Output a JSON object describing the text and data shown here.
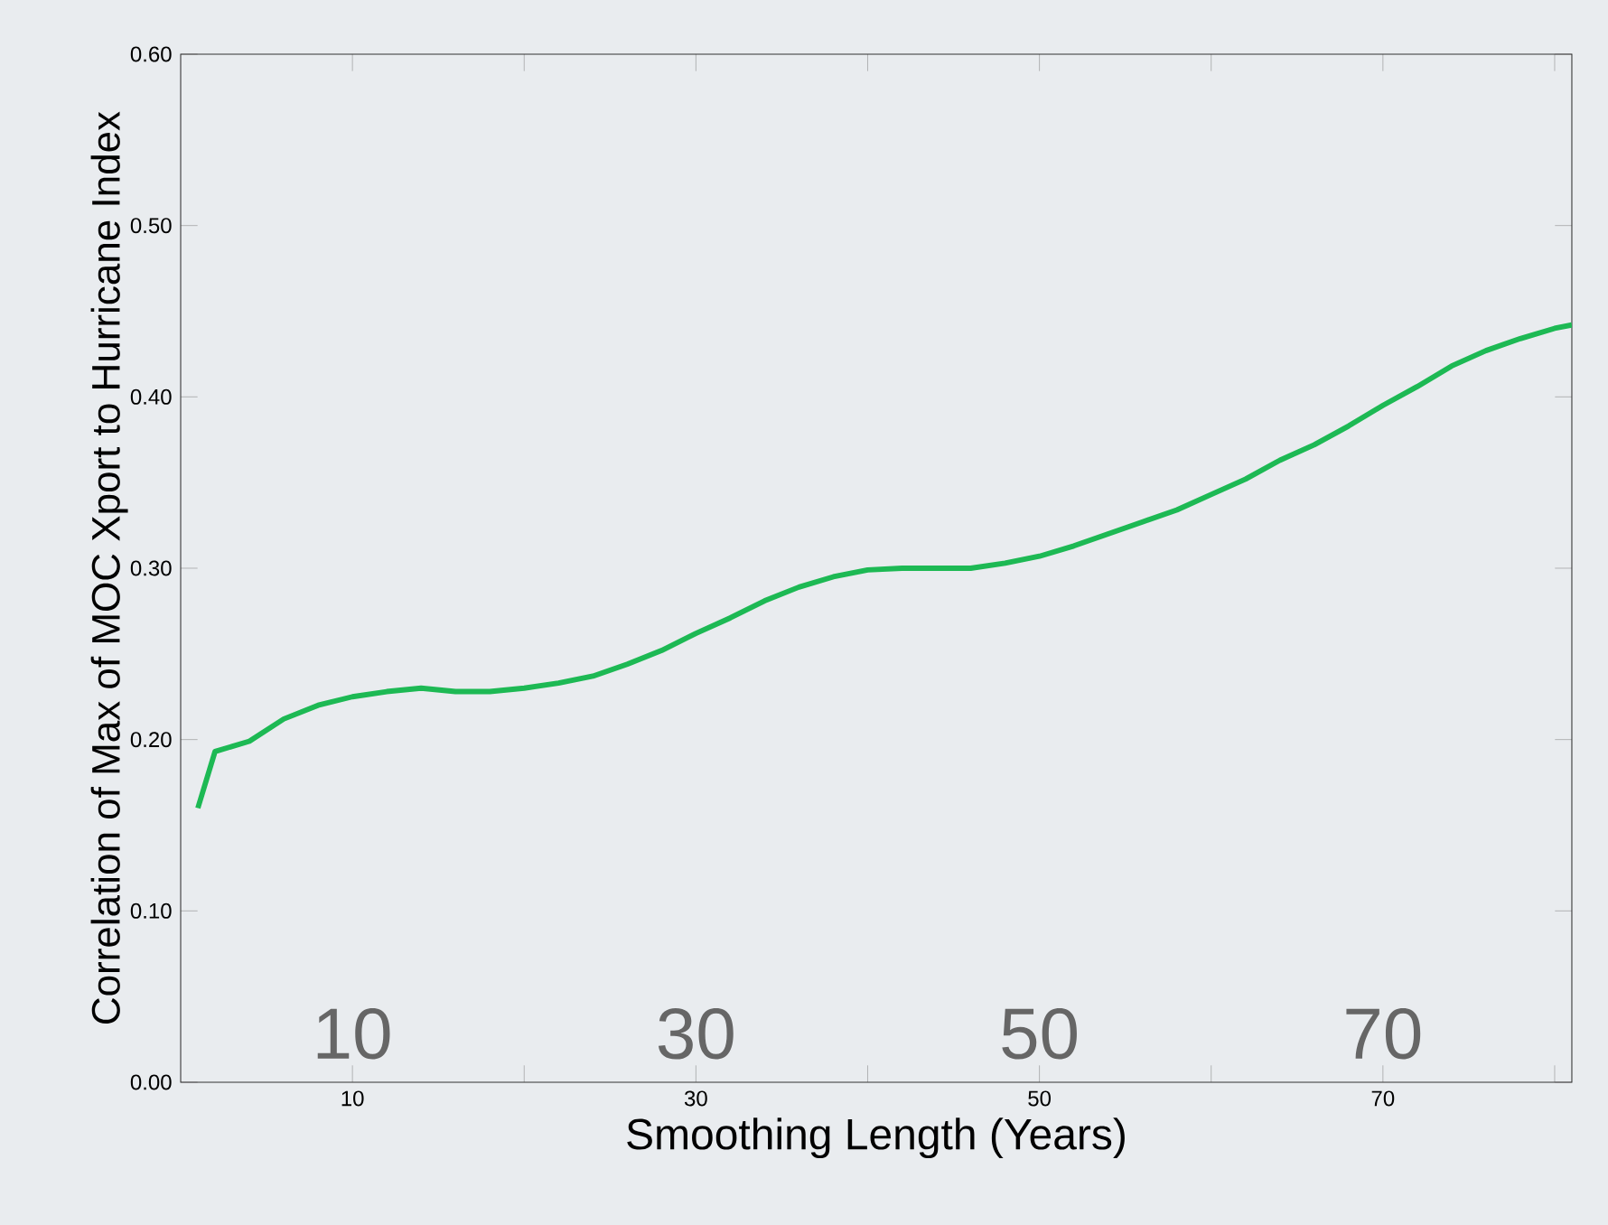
{
  "chart_data": {
    "type": "line",
    "xlabel": "Smoothing Length (Years)",
    "ylabel": "Correlation of Max of MOC Xport to Hurricane Index",
    "annotations": [
      "10",
      "30",
      "50",
      "70"
    ],
    "xlim": [
      0,
      81
    ],
    "ylim": [
      0,
      0.6
    ],
    "xticks": [
      {
        "value": 10,
        "label": "10"
      },
      {
        "value": 20,
        "label": null
      },
      {
        "value": 30,
        "label": "30"
      },
      {
        "value": 40,
        "label": null
      },
      {
        "value": 50,
        "label": "50"
      },
      {
        "value": 60,
        "label": null
      },
      {
        "value": 70,
        "label": "70"
      },
      {
        "value": 80,
        "label": null
      }
    ],
    "yticks": [
      {
        "value": 0,
        "label": "0.00"
      },
      {
        "value": 0.1,
        "label": "0.10"
      },
      {
        "value": 0.2,
        "label": "0.20"
      },
      {
        "value": 0.3,
        "label": "0.30"
      },
      {
        "value": 0.4,
        "label": "0.40"
      },
      {
        "value": 0.5,
        "label": "0.50"
      },
      {
        "value": 0.6,
        "label": "0.60"
      }
    ],
    "grid": false,
    "marker": "none",
    "line_style": "solid",
    "x": [
      1,
      2,
      4,
      6,
      8,
      10,
      12,
      14,
      16,
      18,
      20,
      22,
      24,
      26,
      28,
      30,
      32,
      34,
      36,
      38,
      40,
      42,
      44,
      46,
      48,
      50,
      52,
      54,
      56,
      58,
      60,
      62,
      64,
      66,
      68,
      70,
      72,
      74,
      76,
      78,
      80,
      81
    ],
    "series": [
      {
        "color": "#1db954",
        "values": [
          0.16,
          0.193,
          0.199,
          0.212,
          0.22,
          0.225,
          0.228,
          0.23,
          0.228,
          0.228,
          0.23,
          0.233,
          0.237,
          0.244,
          0.252,
          0.262,
          0.271,
          0.281,
          0.289,
          0.295,
          0.299,
          0.3,
          0.3,
          0.3,
          0.303,
          0.307,
          0.313,
          0.32,
          0.327,
          0.334,
          0.343,
          0.352,
          0.363,
          0.372,
          0.383,
          0.395,
          0.406,
          0.418,
          0.427,
          0.434,
          0.44,
          0.442
        ]
      }
    ]
  }
}
